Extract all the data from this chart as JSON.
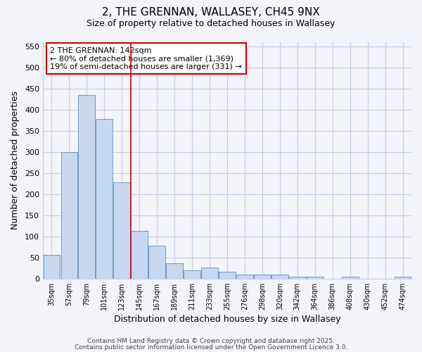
{
  "title_line1": "2, THE GRENNAN, WALLASEY, CH45 9NX",
  "title_line2": "Size of property relative to detached houses in Wallasey",
  "xlabel": "Distribution of detached houses by size in Wallasey",
  "ylabel": "Number of detached properties",
  "bar_color": "#c8d8f0",
  "bar_edge_color": "#5a8fc0",
  "categories": [
    "35sqm",
    "57sqm",
    "79sqm",
    "101sqm",
    "123sqm",
    "145sqm",
    "167sqm",
    "189sqm",
    "211sqm",
    "233sqm",
    "255sqm",
    "276sqm",
    "298sqm",
    "320sqm",
    "342sqm",
    "364sqm",
    "386sqm",
    "408sqm",
    "430sqm",
    "452sqm",
    "474sqm"
  ],
  "values": [
    57,
    300,
    435,
    378,
    228,
    113,
    78,
    37,
    20,
    26,
    16,
    9,
    10,
    10,
    4,
    4,
    0,
    4,
    0,
    0,
    4
  ],
  "ylim": [
    0,
    560
  ],
  "yticks": [
    0,
    50,
    100,
    150,
    200,
    250,
    300,
    350,
    400,
    450,
    500,
    550
  ],
  "vline_x": 5,
  "vline_color": "#cc0000",
  "annotation_title": "2 THE GRENNAN: 142sqm",
  "annotation_line1": "← 80% of detached houses are smaller (1,369)",
  "annotation_line2": "19% of semi-detached houses are larger (331) →",
  "annotation_box_color": "#ffffff",
  "annotation_box_edge": "#cc0000",
  "background_color": "#f4f4fb",
  "grid_color": "#c8cce8",
  "footer1": "Contains HM Land Registry data © Crown copyright and database right 2025.",
  "footer2": "Contains public sector information licensed under the Open Government Licence 3.0."
}
